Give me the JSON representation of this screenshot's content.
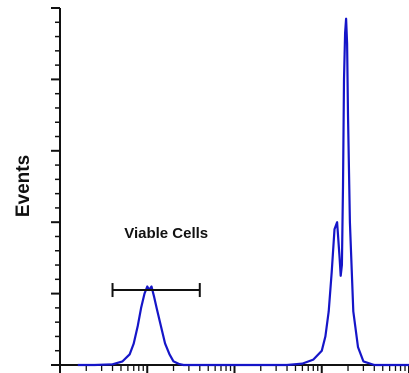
{
  "chart_data": {
    "type": "line",
    "title": "",
    "xlabel": "",
    "ylabel": "Events",
    "x_scale": "log",
    "xlim": [
      0.1,
      1000
    ],
    "ylim": [
      0,
      100
    ],
    "grid": false,
    "legend": "none",
    "colors": {
      "series": "#1515c8",
      "axis": "#111111"
    },
    "series": [
      {
        "x": [
          0.16,
          0.25,
          0.4,
          0.52,
          0.63,
          0.7,
          0.78,
          0.85,
          0.93,
          1.0,
          1.05,
          1.12,
          1.2,
          1.28,
          1.4,
          1.6,
          1.8,
          2.0,
          2.3,
          2.6,
          3.0,
          3.5,
          4.5,
          6,
          10,
          20,
          40,
          60,
          80,
          100,
          110,
          120,
          130,
          140,
          150,
          160,
          165,
          170,
          175,
          180,
          185,
          190,
          195,
          200,
          210,
          230,
          260,
          300,
          400,
          1000
        ],
        "values": [
          0,
          0,
          0.2,
          1,
          3,
          6,
          11,
          16,
          20,
          22,
          21,
          22,
          19,
          16,
          12,
          6,
          3,
          1,
          0.3,
          0,
          0,
          0,
          0,
          0,
          0,
          0,
          0,
          0.4,
          1.5,
          4,
          8,
          15,
          26,
          38,
          40,
          30,
          25,
          28,
          50,
          80,
          93,
          97,
          90,
          70,
          40,
          15,
          5,
          1,
          0,
          0
        ]
      }
    ],
    "annotations": [
      {
        "text": "Viable Cells",
        "type": "gate",
        "x_range": [
          0.4,
          4.0
        ],
        "y": 21
      }
    ],
    "y_major_ticks": [
      0,
      20,
      40,
      60,
      80,
      100
    ],
    "y_minor_per_major": 4,
    "x_decades": [
      0.1,
      1,
      10,
      100,
      1000
    ]
  }
}
